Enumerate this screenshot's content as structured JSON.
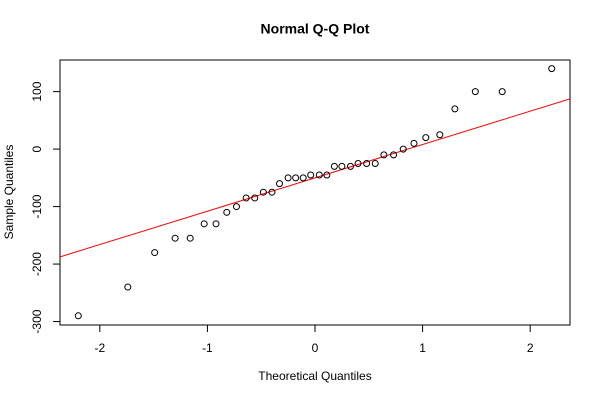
{
  "chart_data": {
    "type": "scatter",
    "title": "Normal Q-Q Plot",
    "x_label": "Theoretical Quantiles",
    "y_label": "Sample Quantiles",
    "series": [
      {
        "name": "sample",
        "color": "#000000",
        "x": [
          -2.2,
          -1.74,
          -1.49,
          -1.3,
          -1.16,
          -1.03,
          -0.92,
          -0.82,
          -0.73,
          -0.64,
          -0.56,
          -0.48,
          -0.4,
          -0.33,
          -0.25,
          -0.18,
          -0.11,
          -0.04,
          0.04,
          0.11,
          0.18,
          0.25,
          0.33,
          0.4,
          0.48,
          0.56,
          0.64,
          0.73,
          0.82,
          0.92,
          1.03,
          1.16,
          1.3,
          1.49,
          1.74,
          2.2
        ],
        "values": [
          -290,
          -240,
          -180,
          -155,
          -155,
          -130,
          -130,
          -110,
          -100,
          -85,
          -85,
          -75,
          -75,
          -60,
          -50,
          -50,
          -50,
          -45,
          -45,
          -45,
          -30,
          -30,
          -30,
          -25,
          -25,
          -25,
          -10,
          -10,
          0,
          10,
          20,
          25,
          70,
          100,
          100,
          140
        ]
      }
    ],
    "line": {
      "intercept": -50,
      "slope": 58,
      "color": "#ff0000"
    },
    "xlim": [
      -2.37,
      2.37
    ],
    "xticks": [
      -2,
      -1,
      0,
      1,
      2
    ],
    "ylim": [
      -306,
      155
    ],
    "yticks": [
      -300,
      -200,
      -100,
      0,
      100
    ]
  }
}
